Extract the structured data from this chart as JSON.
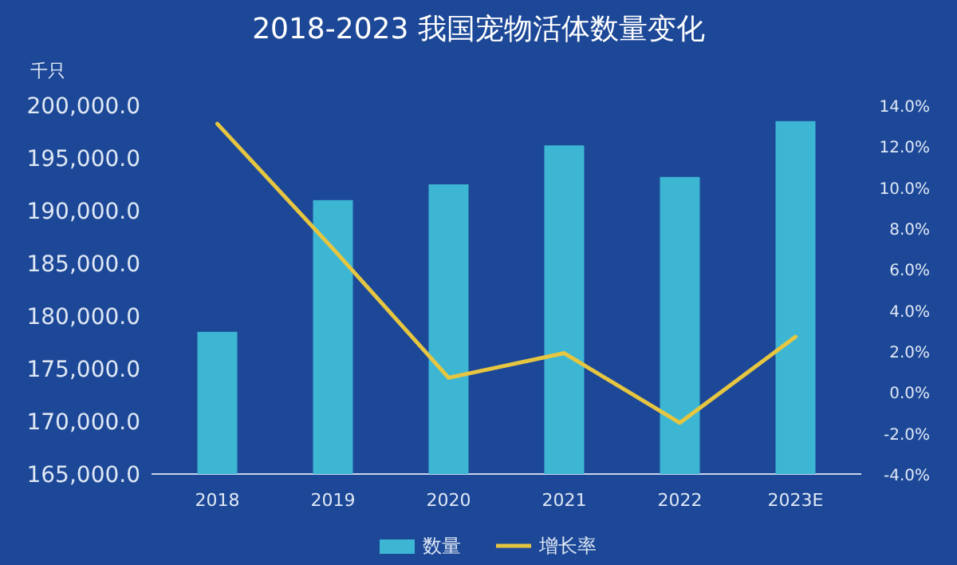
{
  "chart_data": {
    "type": "bar",
    "title": "2018-2023 我国宠物活体数量变化",
    "ylabel": "千只",
    "categories": [
      "2018",
      "2019",
      "2020",
      "2021",
      "2022",
      "2023E"
    ],
    "series": [
      {
        "name": "数量",
        "color": "#3db6d4",
        "values": [
          178500,
          191000,
          192500,
          196200,
          193200,
          198500
        ]
      },
      {
        "name": "增长率",
        "type": "line",
        "axis": "y2",
        "color": "#e6c640",
        "values": [
          13.1,
          7.0,
          0.7,
          1.9,
          -1.5,
          2.7
        ]
      }
    ],
    "ylim": [
      165000,
      200000
    ],
    "yticks": [
      {
        "value": 165000,
        "label": "165,000.0"
      },
      {
        "value": 170000,
        "label": "170,000.0"
      },
      {
        "value": 175000,
        "label": "175,000.0"
      },
      {
        "value": 180000,
        "label": "180,000.0"
      },
      {
        "value": 185000,
        "label": "185,000.0"
      },
      {
        "value": 190000,
        "label": "190,000.0"
      },
      {
        "value": 195000,
        "label": "195,000.0"
      },
      {
        "value": 200000,
        "label": "200,000.0"
      }
    ],
    "y2lim": [
      -4,
      14
    ],
    "y2ticks": [
      {
        "value": -4,
        "label": "-4.0%"
      },
      {
        "value": -2,
        "label": "-2.0%"
      },
      {
        "value": 0,
        "label": "0.0%"
      },
      {
        "value": 2,
        "label": "2.0%"
      },
      {
        "value": 4,
        "label": "4.0%"
      },
      {
        "value": 6,
        "label": "6.0%"
      },
      {
        "value": 8,
        "label": "8.0%"
      },
      {
        "value": 10,
        "label": "10.0%"
      },
      {
        "value": 12,
        "label": "12.0%"
      },
      {
        "value": 14,
        "label": "14.0%"
      }
    ],
    "legend": "bottom"
  }
}
